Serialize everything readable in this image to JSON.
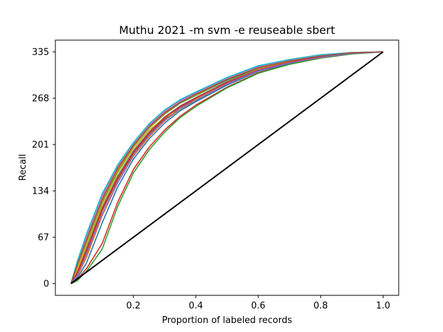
{
  "chart_data": {
    "type": "line",
    "title": "Muthu 2021 -m svm -e reuseable sbert",
    "xlabel": "Proportion of labeled records",
    "ylabel": "Recall",
    "xlim": [
      -0.05,
      1.05
    ],
    "ylim": [
      -17,
      352
    ],
    "x_ticks": [
      {
        "value": 0.2,
        "label": "0.2"
      },
      {
        "value": 0.4,
        "label": "0.4"
      },
      {
        "value": 0.6,
        "label": "0.6"
      },
      {
        "value": 0.8,
        "label": "0.8"
      },
      {
        "value": 1.0,
        "label": "1.0"
      }
    ],
    "y_ticks": [
      {
        "value": 0,
        "label": "0"
      },
      {
        "value": 67,
        "label": "67"
      },
      {
        "value": 134,
        "label": "134"
      },
      {
        "value": 201,
        "label": "201"
      },
      {
        "value": 268,
        "label": "268"
      },
      {
        "value": 335,
        "label": "335"
      }
    ],
    "grid": false,
    "legend": "none",
    "random_baseline": {
      "color": "#000000",
      "x": [
        0.0,
        1.0
      ],
      "y": [
        0,
        335
      ]
    },
    "series_colors": [
      "#1f77b4",
      "#ff7f0e",
      "#2ca02c",
      "#d62728",
      "#9467bd",
      "#8c564b",
      "#e377c2",
      "#7f7f7f",
      "#bcbd22",
      "#17becf"
    ],
    "x_points": [
      0.0,
      0.02,
      0.05,
      0.1,
      0.15,
      0.2,
      0.25,
      0.3,
      0.35,
      0.4,
      0.5,
      0.6,
      0.7,
      0.8,
      0.9,
      1.0
    ],
    "series": [
      {
        "values": [
          0,
          30,
          70,
          128,
          170,
          203,
          230,
          250,
          265,
          276,
          297,
          314,
          323,
          330,
          334,
          335
        ]
      },
      {
        "values": [
          0,
          10,
          38,
          98,
          146,
          184,
          212,
          235,
          252,
          264,
          288,
          308,
          319,
          327,
          333,
          335
        ]
      },
      {
        "values": [
          0,
          22,
          60,
          118,
          163,
          198,
          225,
          245,
          261,
          272,
          294,
          311,
          321,
          329,
          334,
          335
        ]
      },
      {
        "values": [
          0,
          6,
          22,
          58,
          118,
          165,
          197,
          222,
          242,
          258,
          284,
          305,
          317,
          326,
          332,
          335
        ]
      },
      {
        "values": [
          0,
          26,
          66,
          124,
          168,
          201,
          228,
          248,
          263,
          274,
          296,
          313,
          322,
          330,
          334,
          335
        ]
      },
      {
        "values": [
          0,
          14,
          46,
          105,
          150,
          188,
          216,
          238,
          255,
          267,
          290,
          309,
          320,
          328,
          333,
          335
        ]
      },
      {
        "values": [
          0,
          28,
          68,
          126,
          169,
          202,
          229,
          249,
          264,
          275,
          296,
          313,
          323,
          330,
          334,
          335
        ]
      },
      {
        "values": [
          0,
          18,
          52,
          110,
          156,
          192,
          219,
          241,
          257,
          269,
          292,
          310,
          320,
          328,
          333,
          335
        ]
      },
      {
        "values": [
          0,
          20,
          56,
          114,
          160,
          195,
          222,
          240,
          252,
          266,
          291,
          310,
          321,
          329,
          334,
          335
        ]
      },
      {
        "values": [
          0,
          32,
          72,
          130,
          172,
          204,
          231,
          251,
          266,
          277,
          298,
          315,
          324,
          331,
          334,
          335
        ]
      },
      {
        "values": [
          0,
          8,
          30,
          88,
          140,
          180,
          209,
          232,
          250,
          263,
          287,
          307,
          318,
          327,
          333,
          335
        ]
      },
      {
        "values": [
          0,
          24,
          62,
          120,
          165,
          199,
          226,
          246,
          262,
          273,
          295,
          312,
          322,
          329,
          334,
          335
        ]
      },
      {
        "values": [
          0,
          4,
          18,
          50,
          112,
          160,
          193,
          219,
          240,
          256,
          283,
          304,
          317,
          326,
          332,
          335
        ]
      },
      {
        "values": [
          0,
          16,
          48,
          108,
          153,
          190,
          218,
          240,
          256,
          268,
          291,
          309,
          320,
          328,
          333,
          335
        ]
      },
      {
        "values": [
          0,
          12,
          42,
          100,
          146,
          185,
          214,
          236,
          253,
          265,
          289,
          308,
          319,
          327,
          333,
          335
        ]
      },
      {
        "values": [
          0,
          27,
          64,
          122,
          167,
          200,
          227,
          247,
          262,
          274,
          295,
          312,
          322,
          329,
          334,
          335
        ]
      }
    ]
  }
}
